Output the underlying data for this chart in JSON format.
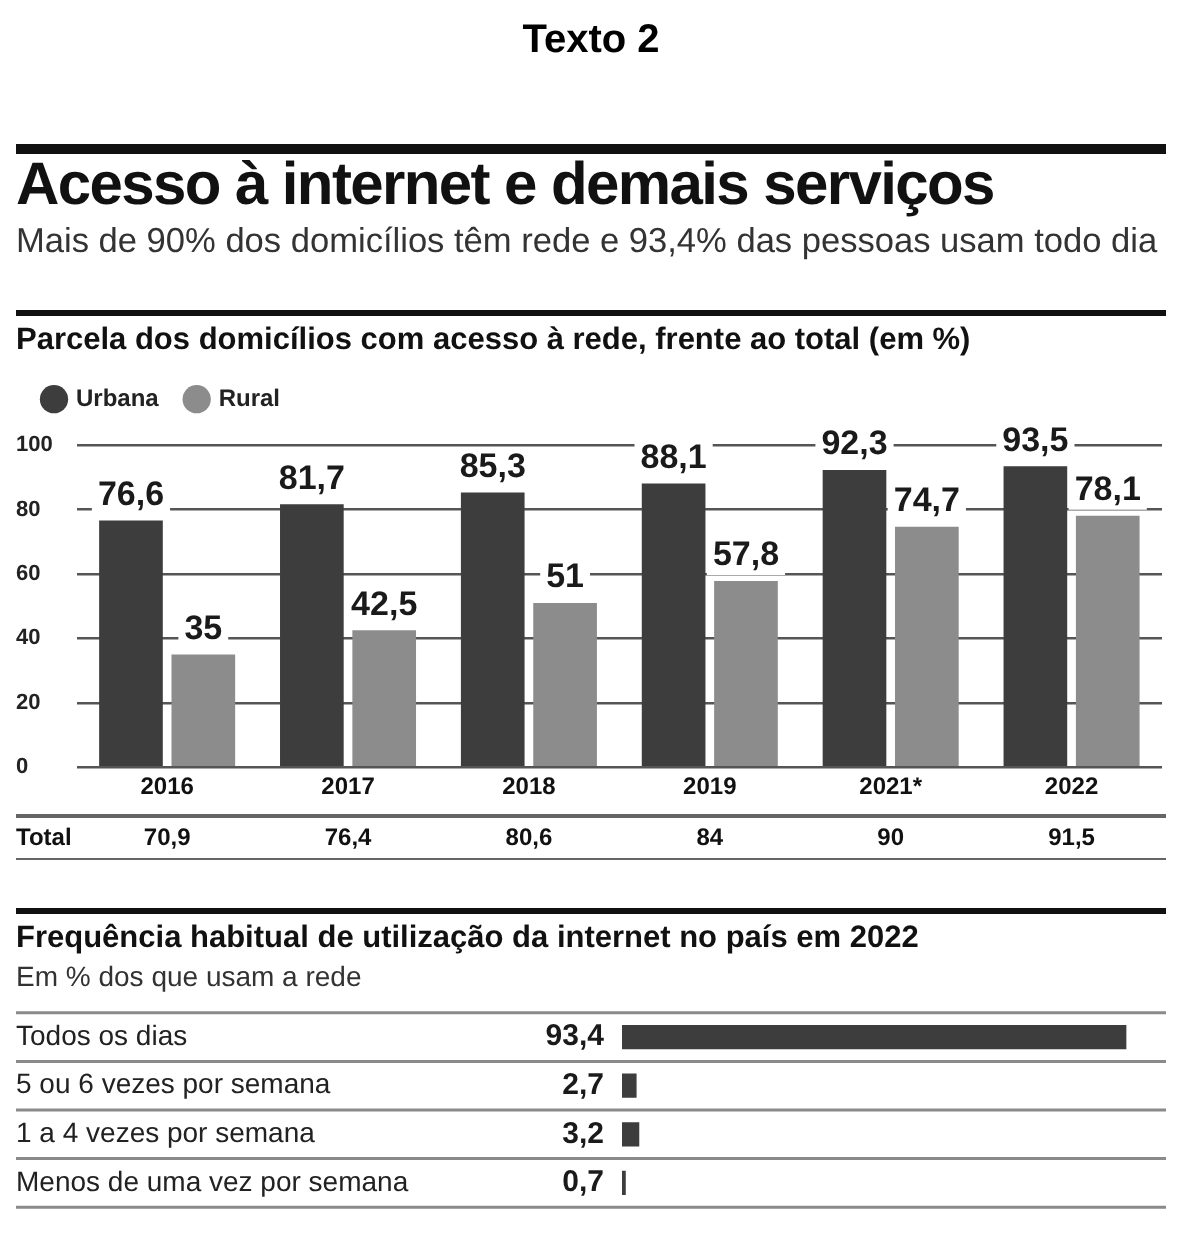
{
  "chart_data": [
    {
      "type": "other",
      "title": "Acesso à internet e demais serviços",
      "subtitle": "Mais de 90% dos domicílios têm rede e 93,4% das pessoas usam todo dia",
      "annotations": [
        "Texto 2"
      ]
    },
    {
      "type": "bar",
      "title": "Parcela dos domicílios com acesso à rede, frente ao total (em %)",
      "categories": [
        "2016",
        "2017",
        "2018",
        "2019",
        "2021*",
        "2022"
      ],
      "series": [
        {
          "name": "Urbana",
          "color": "#3d3d3d",
          "values": [
            76.6,
            81.7,
            85.3,
            88.1,
            92.3,
            93.5
          ],
          "value_labels": [
            "76,6",
            "81,7",
            "85,3",
            "88,1",
            "92,3",
            "93,5"
          ]
        },
        {
          "name": "Rural",
          "color": "#8c8c8c",
          "values": [
            35,
            42.5,
            51,
            57.8,
            74.7,
            78.1
          ],
          "value_labels": [
            "35",
            "42,5",
            "51",
            "57,8",
            "74,7",
            "78,1"
          ]
        }
      ],
      "ylim": [
        0,
        100
      ],
      "yticks": [
        0,
        20,
        40,
        60,
        80,
        100
      ],
      "grid": "y",
      "legend": "top left",
      "annotations": [
        "Total",
        "70,9",
        "76,4",
        "80,6",
        "84",
        "90",
        "91,5"
      ]
    },
    {
      "type": "bar",
      "orientation": "horizontal",
      "title": "Frequência habitual de utilização da internet no país em 2022",
      "subtitle": "Em % dos que usam a rede",
      "categories": [
        "Todos os dias",
        "5 ou 6 vezes por semana",
        "1 a 4 vezes por semana",
        "Menos de uma vez por semana"
      ],
      "values": [
        93.4,
        2.7,
        3.2,
        0.7
      ],
      "value_labels": [
        "93,4",
        "2,7",
        "3,2",
        "0,7"
      ],
      "color": "#3d3d3d",
      "grid": "y"
    }
  ]
}
